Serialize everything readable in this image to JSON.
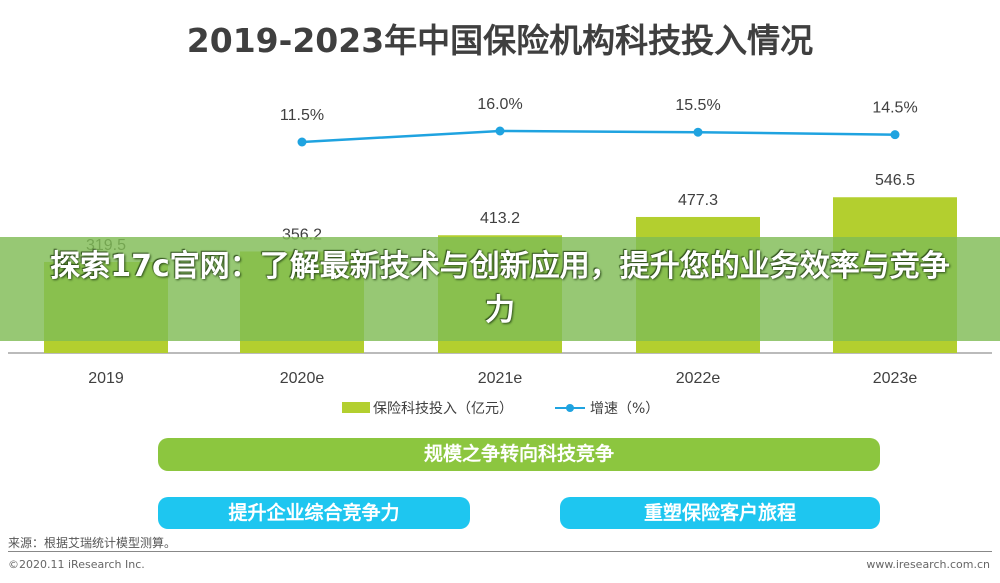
{
  "chart_data": {
    "type": "bar+line",
    "title": "2019-2023年中国保险机构科技投入情况",
    "categories": [
      "2019",
      "2020e",
      "2021e",
      "2022e",
      "2023e"
    ],
    "series": [
      {
        "name": "保险科技投入（亿元）",
        "type": "bar",
        "color": "#b3cf2f",
        "values": [
          319.5,
          356.2,
          413.2,
          477.3,
          546.5
        ],
        "labels": [
          "319.5",
          "356.2",
          "413.2",
          "477.3",
          "546.5"
        ]
      },
      {
        "name": "增速（%）",
        "type": "line",
        "color": "#1fa3e0",
        "values": [
          null,
          11.5,
          16.0,
          15.5,
          14.5
        ],
        "labels": [
          "",
          "11.5%",
          "16.0%",
          "15.5%",
          "14.5%"
        ]
      }
    ],
    "grid": false,
    "legend": "bottom"
  },
  "flow": {
    "top": "规模之争转向科技竞争",
    "left": "提升企业综合竞争力",
    "right": "重塑保险客户旅程"
  },
  "banner": "探索17c官网：了解最新技术与创新应用，提升您的业务效率与竞争力",
  "footer": {
    "source": "来源：根据艾瑞统计模型测算。",
    "copyright": "©2020.11 iResearch Inc.",
    "site": "www.iresearch.com.cn"
  },
  "colors": {
    "bar": "#b3cf2f",
    "line": "#1fa3e0",
    "pill_green": "#8cc63f",
    "pill_blue": "#1ec6f0"
  }
}
